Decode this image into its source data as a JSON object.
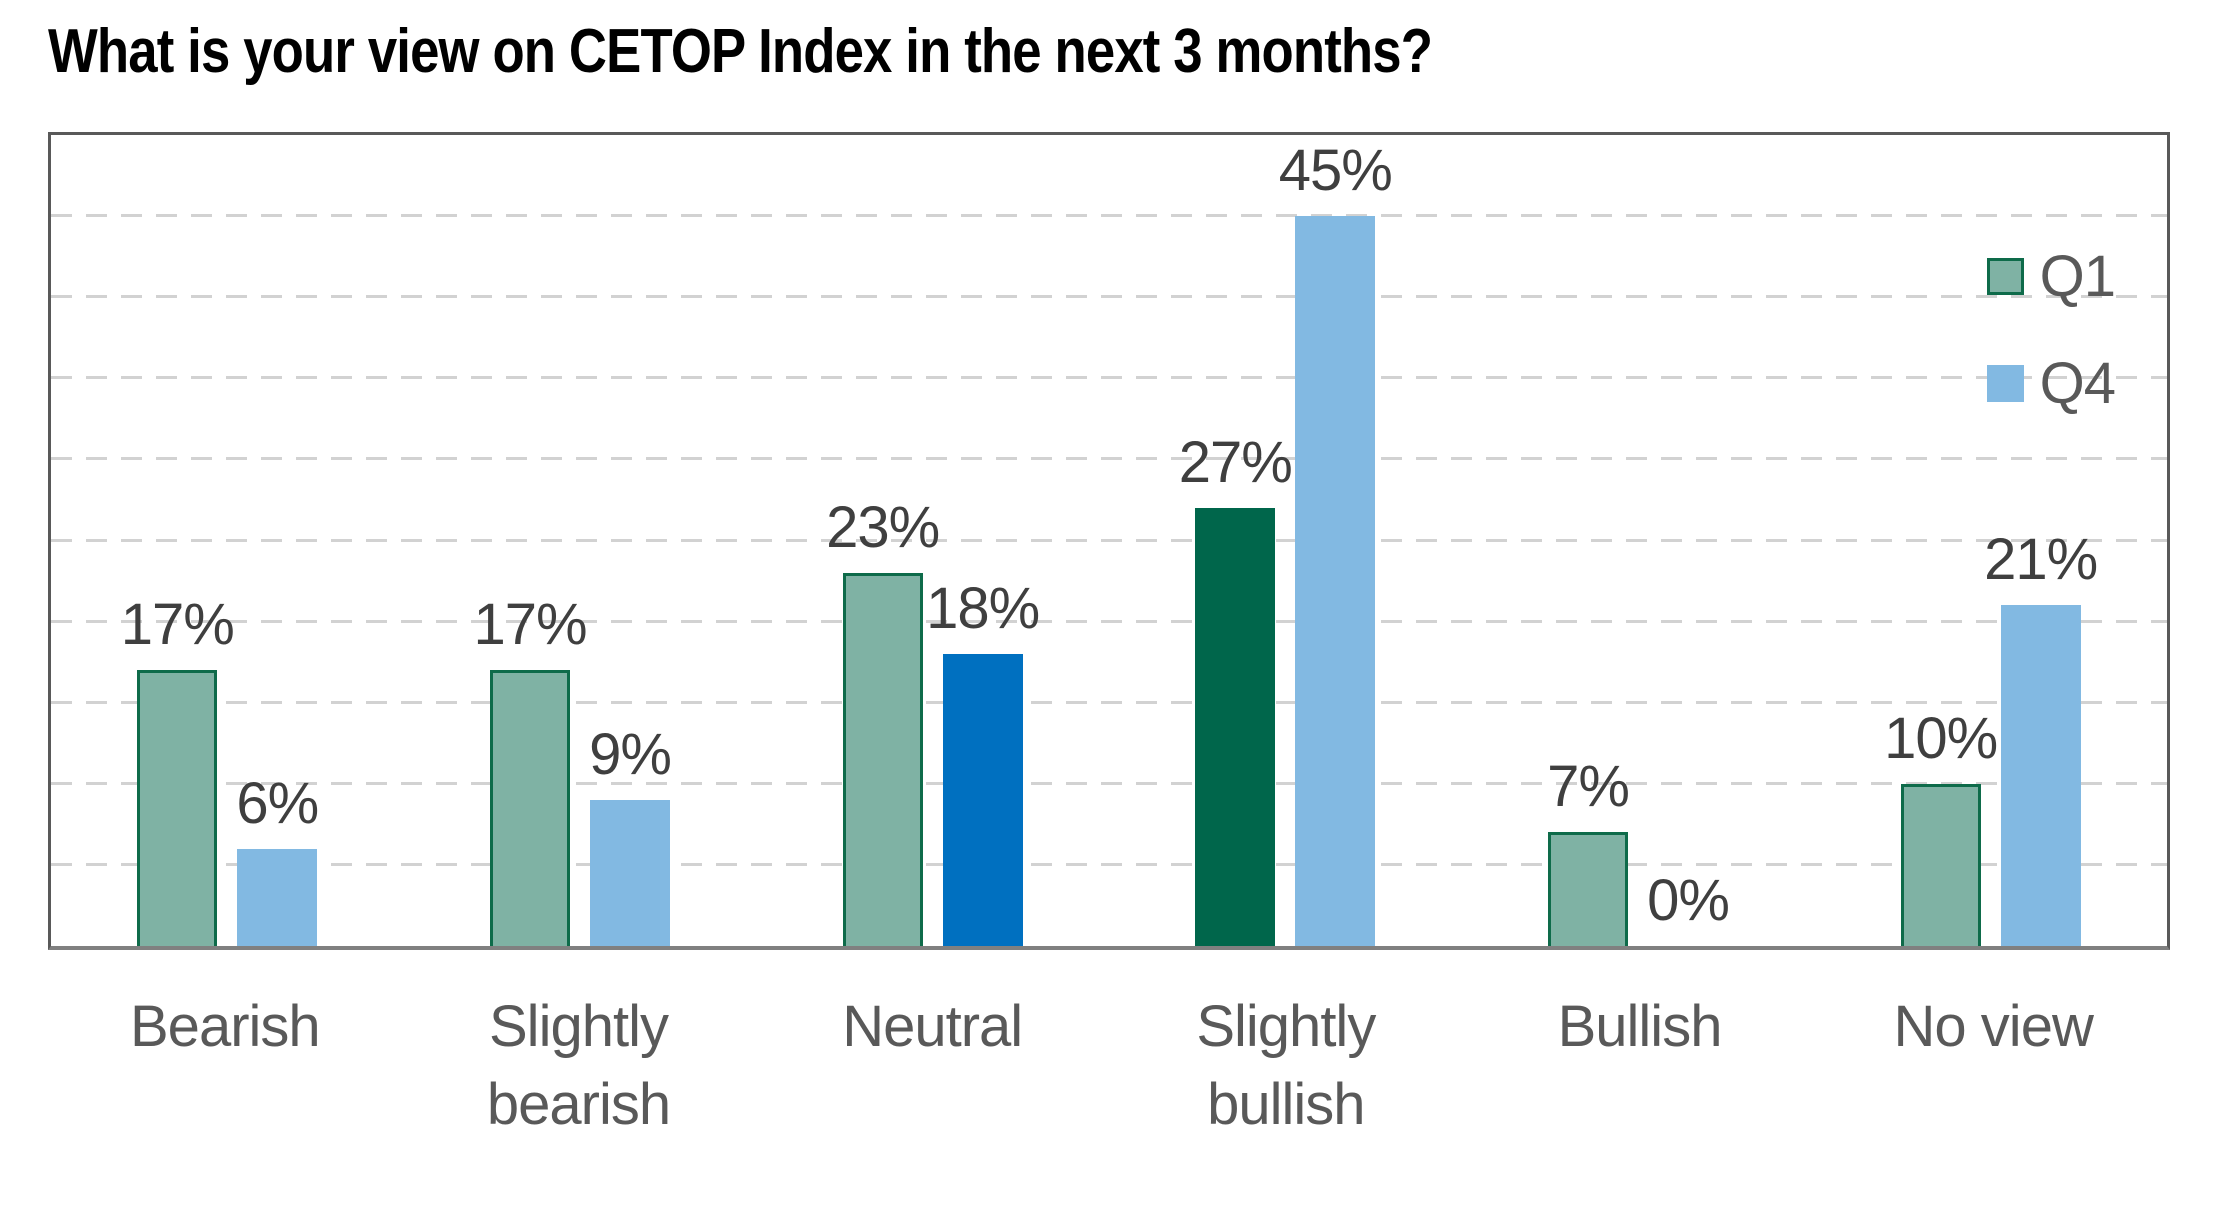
{
  "chart_data": {
    "type": "bar",
    "title": "What is your view on CETOP Index in the next 3 months?",
    "categories": [
      "Bearish",
      "Slightly bearish",
      "Neutral",
      "Slightly bullish",
      "Bullish",
      "No view"
    ],
    "series": [
      {
        "name": "Q1",
        "values": [
          17,
          17,
          23,
          27,
          7,
          10
        ],
        "labels": [
          "17%",
          "17%",
          "23%",
          "27%",
          "7%",
          "10%"
        ],
        "fill": "#7FB2A4",
        "stroke": "#0E6B4A",
        "highlight_fill": "#00664B",
        "highlight_index": 3
      },
      {
        "name": "Q4",
        "values": [
          6,
          9,
          18,
          45,
          0,
          21
        ],
        "labels": [
          "6%",
          "9%",
          "18%",
          "45%",
          "0%",
          "21%"
        ],
        "fill": "#82B9E2",
        "stroke": null,
        "highlight_fill": "#0070C0",
        "highlight_index": 2
      }
    ],
    "ylim": [
      0,
      50
    ],
    "grid_interval": 5,
    "grid": "horizontal-dashed",
    "legend_position": "top-right-inside",
    "xlabel": "",
    "ylabel": "",
    "value_format": "percent"
  },
  "colors": {
    "grid": "#D2D2D2",
    "axis": "#808080",
    "plot_border": "#595959",
    "title_text": "#000000",
    "data_label_text": "#3F3F3F",
    "category_text": "#595959",
    "legend_text": "#595959"
  }
}
